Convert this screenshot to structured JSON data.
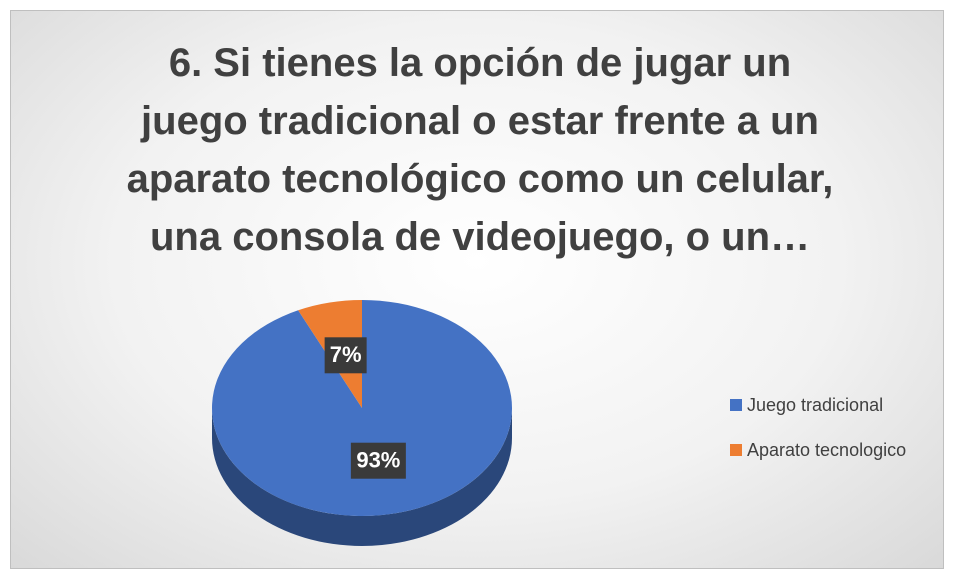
{
  "chart_data": {
    "type": "pie",
    "title": "6. Si tienes la opción de jugar un juego tradicional o estar frente a un aparato tecnológico como un celular, una consola de videojuego, o un…",
    "categories": [
      "Juego tradicional",
      "Aparato tecnologico"
    ],
    "values": [
      93,
      7
    ],
    "value_labels": [
      "93%",
      "7%"
    ],
    "colors": [
      "#4472c4",
      "#ed7d31"
    ],
    "legend": "right"
  }
}
